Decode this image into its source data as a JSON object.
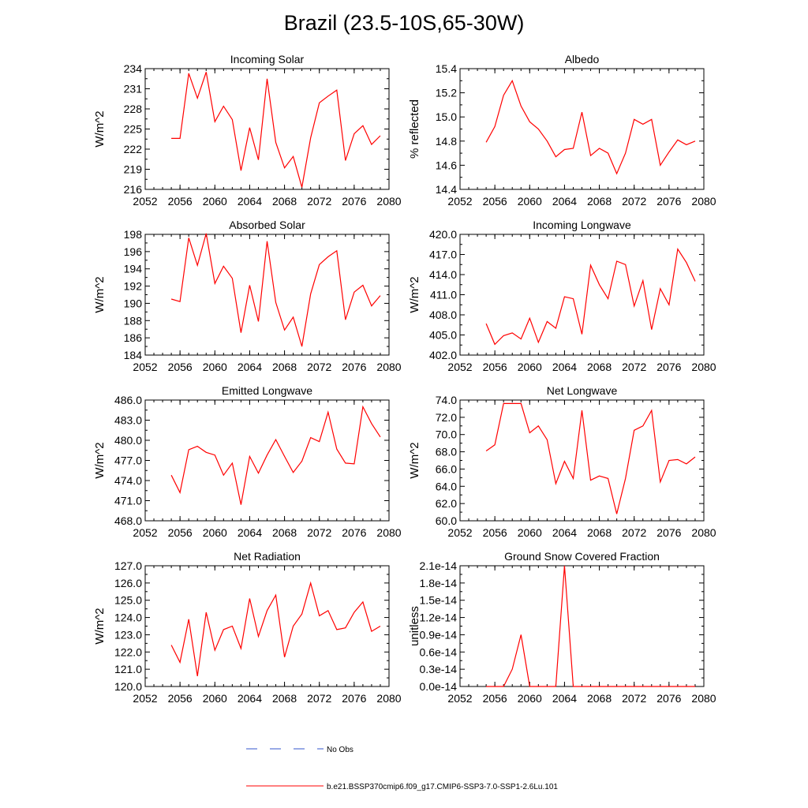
{
  "title": "Brazil (23.5-10S,65-30W)",
  "colors": {
    "model_line": "#ff0000",
    "obs_line": "#3355cc",
    "axis": "#000000"
  },
  "legend": {
    "obs_label": "No Obs",
    "model_label": "b.e21.BSSP370cmip6.f09_g17.CMIP6-SSP3-7.0-SSP1-2.6Lu.101"
  },
  "chart_data": [
    {
      "type": "line",
      "title": "Incoming Solar",
      "ylabel": "W/m^2",
      "xlim": [
        2052,
        2080
      ],
      "xticks": [
        "2052",
        "2056",
        "2060",
        "2064",
        "2068",
        "2072",
        "2076",
        "2080"
      ],
      "ylim": [
        216,
        234
      ],
      "yticks": [
        "216",
        "219",
        "222",
        "225",
        "228",
        "231",
        "234"
      ],
      "x": [
        2055,
        2056,
        2057,
        2058,
        2059,
        2060,
        2061,
        2062,
        2063,
        2064,
        2065,
        2066,
        2067,
        2068,
        2069,
        2070,
        2071,
        2072,
        2073,
        2074,
        2075,
        2076,
        2077,
        2078,
        2079
      ],
      "series": [
        {
          "values": [
            223.6,
            223.6,
            233.3,
            229.6,
            233.5,
            226.1,
            228.4,
            226.4,
            218.8,
            225.2,
            220.4,
            232.5,
            223.0,
            219.2,
            220.9,
            216.3,
            223.7,
            228.9,
            229.9,
            230.8,
            220.3,
            224.3,
            225.5,
            222.7,
            224.0
          ]
        }
      ]
    },
    {
      "type": "line",
      "title": "Albedo",
      "ylabel": "% reflected",
      "xlim": [
        2052,
        2080
      ],
      "xticks": [
        "2052",
        "2056",
        "2060",
        "2064",
        "2068",
        "2072",
        "2076",
        "2080"
      ],
      "ylim": [
        14.4,
        15.4
      ],
      "yticks": [
        "14.4",
        "14.6",
        "14.8",
        "15.0",
        "15.2",
        "15.4"
      ],
      "x": [
        2055,
        2056,
        2057,
        2058,
        2059,
        2060,
        2061,
        2062,
        2063,
        2064,
        2065,
        2066,
        2067,
        2068,
        2069,
        2070,
        2071,
        2072,
        2073,
        2074,
        2075,
        2076,
        2077,
        2078,
        2079
      ],
      "series": [
        {
          "values": [
            14.79,
            14.92,
            15.18,
            15.3,
            15.09,
            14.96,
            14.9,
            14.8,
            14.67,
            14.73,
            14.74,
            15.04,
            14.68,
            14.74,
            14.7,
            14.53,
            14.7,
            14.98,
            14.94,
            14.98,
            14.6,
            14.71,
            14.81,
            14.77,
            14.8
          ]
        }
      ]
    },
    {
      "type": "line",
      "title": "Absorbed Solar",
      "ylabel": "W/m^2",
      "xlim": [
        2052,
        2080
      ],
      "xticks": [
        "2052",
        "2056",
        "2060",
        "2064",
        "2068",
        "2072",
        "2076",
        "2080"
      ],
      "ylim": [
        184,
        198
      ],
      "yticks": [
        "184",
        "186",
        "188",
        "190",
        "192",
        "194",
        "196",
        "198"
      ],
      "x": [
        2055,
        2056,
        2057,
        2058,
        2059,
        2060,
        2061,
        2062,
        2063,
        2064,
        2065,
        2066,
        2067,
        2068,
        2069,
        2070,
        2071,
        2072,
        2073,
        2074,
        2075,
        2076,
        2077,
        2078,
        2079
      ],
      "series": [
        {
          "values": [
            190.5,
            190.2,
            197.6,
            194.4,
            198.1,
            192.3,
            194.3,
            192.9,
            186.6,
            192.1,
            187.9,
            197.2,
            190.1,
            186.9,
            188.4,
            185.0,
            191.1,
            194.5,
            195.4,
            196.1,
            188.1,
            191.3,
            192.1,
            189.7,
            190.9
          ]
        }
      ]
    },
    {
      "type": "line",
      "title": "Incoming Longwave",
      "ylabel": "W/m^2",
      "xlim": [
        2052,
        2080
      ],
      "xticks": [
        "2052",
        "2056",
        "2060",
        "2064",
        "2068",
        "2072",
        "2076",
        "2080"
      ],
      "ylim": [
        402,
        420
      ],
      "yticks": [
        "402.0",
        "405.0",
        "408.0",
        "411.0",
        "414.0",
        "417.0",
        "420.0"
      ],
      "x": [
        2055,
        2056,
        2057,
        2058,
        2059,
        2060,
        2061,
        2062,
        2063,
        2064,
        2065,
        2066,
        2067,
        2068,
        2069,
        2070,
        2071,
        2072,
        2073,
        2074,
        2075,
        2076,
        2077,
        2078,
        2079
      ],
      "series": [
        {
          "values": [
            406.7,
            403.6,
            404.9,
            405.3,
            404.4,
            407.5,
            403.9,
            407.0,
            406.0,
            410.7,
            410.4,
            405.1,
            415.4,
            412.5,
            410.4,
            416.0,
            415.5,
            409.3,
            413.1,
            405.8,
            411.9,
            409.5,
            417.8,
            415.8,
            413.0
          ]
        }
      ]
    },
    {
      "type": "line",
      "title": "Emitted Longwave",
      "ylabel": "W/m^2",
      "xlim": [
        2052,
        2080
      ],
      "xticks": [
        "2052",
        "2056",
        "2060",
        "2064",
        "2068",
        "2072",
        "2076",
        "2080"
      ],
      "ylim": [
        468,
        486
      ],
      "yticks": [
        "468.0",
        "471.0",
        "474.0",
        "477.0",
        "480.0",
        "483.0",
        "486.0"
      ],
      "x": [
        2055,
        2056,
        2057,
        2058,
        2059,
        2060,
        2061,
        2062,
        2063,
        2064,
        2065,
        2066,
        2067,
        2068,
        2069,
        2070,
        2071,
        2072,
        2073,
        2074,
        2075,
        2076,
        2077,
        2078,
        2079
      ],
      "series": [
        {
          "values": [
            474.8,
            472.2,
            478.6,
            479.1,
            478.2,
            477.8,
            474.8,
            476.6,
            470.4,
            477.6,
            475.1,
            477.8,
            480.1,
            477.6,
            475.2,
            476.9,
            480.4,
            479.8,
            484.2,
            478.7,
            476.6,
            476.5,
            485.0,
            482.5,
            480.5
          ]
        }
      ]
    },
    {
      "type": "line",
      "title": "Net Longwave",
      "ylabel": "W/m^2",
      "xlim": [
        2052,
        2080
      ],
      "xticks": [
        "2052",
        "2056",
        "2060",
        "2064",
        "2068",
        "2072",
        "2076",
        "2080"
      ],
      "ylim": [
        60,
        74
      ],
      "yticks": [
        "60.0",
        "62.0",
        "64.0",
        "66.0",
        "68.0",
        "70.0",
        "72.0",
        "74.0"
      ],
      "x": [
        2055,
        2056,
        2057,
        2058,
        2059,
        2060,
        2061,
        2062,
        2063,
        2064,
        2065,
        2066,
        2067,
        2068,
        2069,
        2070,
        2071,
        2072,
        2073,
        2074,
        2075,
        2076,
        2077,
        2078,
        2079
      ],
      "series": [
        {
          "values": [
            68.1,
            68.8,
            73.6,
            73.6,
            73.6,
            70.2,
            71.0,
            69.4,
            64.3,
            66.9,
            64.9,
            72.8,
            64.7,
            65.2,
            64.9,
            60.8,
            64.9,
            70.5,
            71.0,
            72.8,
            64.5,
            67.0,
            67.1,
            66.6,
            67.4
          ]
        }
      ]
    },
    {
      "type": "line",
      "title": "Net Radiation",
      "ylabel": "W/m^2",
      "xlim": [
        2052,
        2080
      ],
      "xticks": [
        "2052",
        "2056",
        "2060",
        "2064",
        "2068",
        "2072",
        "2076",
        "2080"
      ],
      "ylim": [
        120,
        127
      ],
      "yticks": [
        "120.0",
        "121.0",
        "122.0",
        "123.0",
        "124.0",
        "125.0",
        "126.0",
        "127.0"
      ],
      "x": [
        2055,
        2056,
        2057,
        2058,
        2059,
        2060,
        2061,
        2062,
        2063,
        2064,
        2065,
        2066,
        2067,
        2068,
        2069,
        2070,
        2071,
        2072,
        2073,
        2074,
        2075,
        2076,
        2077,
        2078,
        2079
      ],
      "series": [
        {
          "values": [
            122.4,
            121.4,
            123.9,
            120.6,
            124.3,
            122.1,
            123.3,
            123.5,
            122.2,
            125.1,
            122.9,
            124.4,
            125.3,
            121.7,
            123.5,
            124.2,
            126.0,
            124.1,
            124.4,
            123.3,
            123.4,
            124.3,
            124.9,
            123.2,
            123.5
          ]
        }
      ]
    },
    {
      "type": "line",
      "title": "Ground Snow Covered Fraction",
      "ylabel": "unitless",
      "xlim": [
        2052,
        2080
      ],
      "xticks": [
        "2052",
        "2056",
        "2060",
        "2064",
        "2068",
        "2072",
        "2076",
        "2080"
      ],
      "ylim": [
        0,
        2.1e-14
      ],
      "yticks": [
        "0.0e-14",
        "0.3e-14",
        "0.6e-14",
        "0.9e-14",
        "1.2e-14",
        "1.5e-14",
        "1.8e-14",
        "2.1e-14"
      ],
      "x": [
        2055,
        2056,
        2057,
        2058,
        2059,
        2060,
        2061,
        2062,
        2063,
        2064,
        2065,
        2066,
        2067,
        2068,
        2069,
        2070,
        2071,
        2072,
        2073,
        2074,
        2075,
        2076,
        2077,
        2078,
        2079
      ],
      "series": [
        {
          "values": [
            0,
            0,
            0,
            3e-15,
            9e-15,
            0,
            0,
            0,
            0,
            2.1e-14,
            0,
            0,
            0,
            0,
            0,
            0,
            0,
            0,
            0,
            0,
            0,
            0,
            0,
            0,
            0
          ]
        }
      ]
    }
  ]
}
